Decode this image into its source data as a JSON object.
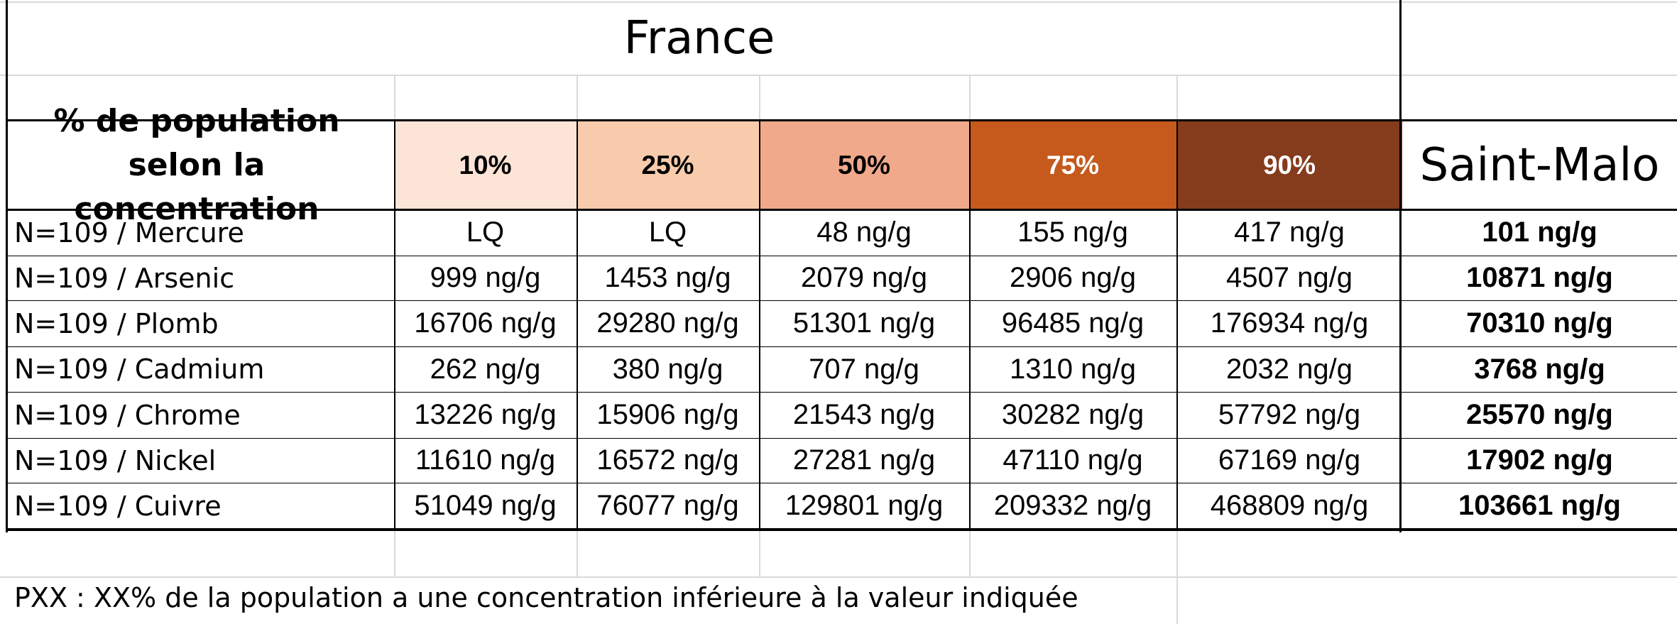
{
  "title": "France",
  "header_label": "% de population selon la concentration",
  "percentiles": [
    {
      "label": "10%",
      "bg": "#fce4d6",
      "fg": "#000000"
    },
    {
      "label": "25%",
      "bg": "#f8cbad",
      "fg": "#000000"
    },
    {
      "label": "50%",
      "bg": "#f0a98a",
      "fg": "#000000"
    },
    {
      "label": "75%",
      "bg": "#c55a1c",
      "fg": "#ffffff"
    },
    {
      "label": "90%",
      "bg": "#843c1c",
      "fg": "#ffffff"
    }
  ],
  "comparison_header": "Saint-Malo",
  "rows": [
    {
      "label": "N=109 / Mercure",
      "values": [
        "LQ",
        "LQ",
        "48 ng/g",
        "155 ng/g",
        "417 ng/g"
      ],
      "saint_malo": "101 ng/g"
    },
    {
      "label": "N=109 / Arsenic",
      "values": [
        "999 ng/g",
        "1453 ng/g",
        "2079 ng/g",
        "2906 ng/g",
        "4507 ng/g"
      ],
      "saint_malo": "10871 ng/g"
    },
    {
      "label": "N=109 / Plomb",
      "values": [
        "16706 ng/g",
        "29280 ng/g",
        "51301 ng/g",
        "96485 ng/g",
        "176934 ng/g"
      ],
      "saint_malo": "70310 ng/g"
    },
    {
      "label": "N=109 / Cadmium",
      "values": [
        "262 ng/g",
        "380 ng/g",
        "707 ng/g",
        "1310 ng/g",
        "2032 ng/g"
      ],
      "saint_malo": "3768 ng/g"
    },
    {
      "label": "N=109 / Chrome",
      "values": [
        "13226 ng/g",
        "15906 ng/g",
        "21543 ng/g",
        "30282 ng/g",
        "57792 ng/g"
      ],
      "saint_malo": "25570 ng/g"
    },
    {
      "label": "N=109 / Nickel",
      "values": [
        "11610 ng/g",
        "16572 ng/g",
        "27281 ng/g",
        "47110 ng/g",
        "67169 ng/g"
      ],
      "saint_malo": "17902 ng/g"
    },
    {
      "label": "N=109 / Cuivre",
      "values": [
        "51049 ng/g",
        "76077 ng/g",
        "129801 ng/g",
        "209332 ng/g",
        "468809 ng/g"
      ],
      "saint_malo": "103661 ng/g"
    }
  ],
  "footnote": "PXX : XX% de la population a une concentration inférieure à la valeur indiquée"
}
